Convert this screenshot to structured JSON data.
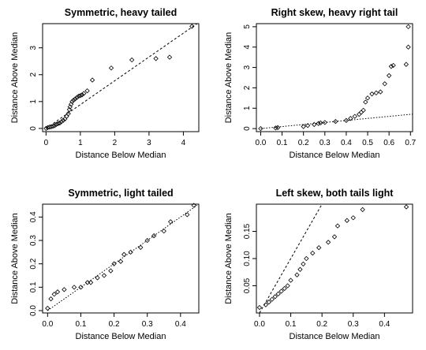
{
  "chart_data": [
    {
      "type": "scatter",
      "title": "Symmetric, heavy tailed",
      "xlabel": "Distance Below Median",
      "ylabel": "Distance Above Median",
      "xlim": [
        -0.1,
        4.45
      ],
      "ylim": [
        -0.12,
        3.9
      ],
      "xticks": [
        0,
        1,
        2,
        3,
        4
      ],
      "yticks": [
        0,
        1,
        2,
        3
      ],
      "reference_line": {
        "from": [
          0,
          0
        ],
        "to": [
          4.4,
          3.9
        ],
        "style": "dashed"
      },
      "points": [
        [
          0.0,
          0.0
        ],
        [
          0.05,
          0.03
        ],
        [
          0.1,
          0.05
        ],
        [
          0.15,
          0.06
        ],
        [
          0.2,
          0.08
        ],
        [
          0.25,
          0.1
        ],
        [
          0.3,
          0.15
        ],
        [
          0.35,
          0.18
        ],
        [
          0.4,
          0.2
        ],
        [
          0.45,
          0.25
        ],
        [
          0.5,
          0.3
        ],
        [
          0.55,
          0.35
        ],
        [
          0.6,
          0.45
        ],
        [
          0.65,
          0.55
        ],
        [
          0.68,
          0.7
        ],
        [
          0.7,
          0.8
        ],
        [
          0.73,
          0.9
        ],
        [
          0.76,
          1.0
        ],
        [
          0.8,
          1.05
        ],
        [
          0.85,
          1.1
        ],
        [
          0.9,
          1.15
        ],
        [
          0.95,
          1.2
        ],
        [
          1.0,
          1.22
        ],
        [
          1.05,
          1.25
        ],
        [
          1.1,
          1.3
        ],
        [
          1.2,
          1.4
        ],
        [
          1.35,
          1.8
        ],
        [
          1.9,
          2.25
        ],
        [
          2.5,
          2.55
        ],
        [
          3.2,
          2.6
        ],
        [
          3.6,
          2.65
        ],
        [
          4.25,
          3.8
        ]
      ]
    },
    {
      "type": "scatter",
      "title": "Right skew, heavy right tail",
      "xlabel": "Distance Below Median",
      "ylabel": "Distance Above Median",
      "xlim": [
        -0.02,
        0.71
      ],
      "ylim": [
        -0.15,
        5.15
      ],
      "xticks": [
        0.0,
        0.1,
        0.2,
        0.3,
        0.4,
        0.5,
        0.6,
        0.7
      ],
      "yticks": [
        0,
        1,
        2,
        3,
        4,
        5
      ],
      "reference_line": {
        "from": [
          0,
          0
        ],
        "to": [
          0.71,
          0.71
        ],
        "style": "dotted"
      },
      "points": [
        [
          0.0,
          0.0
        ],
        [
          0.07,
          0.03
        ],
        [
          0.08,
          0.05
        ],
        [
          0.2,
          0.1
        ],
        [
          0.22,
          0.15
        ],
        [
          0.25,
          0.2
        ],
        [
          0.27,
          0.25
        ],
        [
          0.28,
          0.28
        ],
        [
          0.3,
          0.3
        ],
        [
          0.35,
          0.35
        ],
        [
          0.4,
          0.4
        ],
        [
          0.42,
          0.5
        ],
        [
          0.44,
          0.6
        ],
        [
          0.46,
          0.7
        ],
        [
          0.47,
          0.8
        ],
        [
          0.48,
          0.9
        ],
        [
          0.49,
          1.3
        ],
        [
          0.5,
          1.5
        ],
        [
          0.52,
          1.7
        ],
        [
          0.54,
          1.75
        ],
        [
          0.56,
          1.8
        ],
        [
          0.58,
          2.2
        ],
        [
          0.6,
          2.6
        ],
        [
          0.61,
          3.05
        ],
        [
          0.62,
          3.1
        ],
        [
          0.68,
          3.15
        ],
        [
          0.69,
          4.0
        ],
        [
          0.69,
          5.0
        ]
      ]
    },
    {
      "type": "scatter",
      "title": "Symmetric, light tailed",
      "xlabel": "Distance Below Median",
      "ylabel": "Distance Above Median",
      "xlim": [
        -0.015,
        0.455
      ],
      "ylim": [
        -0.01,
        0.455
      ],
      "xticks": [
        0.0,
        0.1,
        0.2,
        0.3,
        0.4
      ],
      "yticks": [
        0.0,
        0.1,
        0.2,
        0.3,
        0.4
      ],
      "reference_line": {
        "from": [
          0,
          0
        ],
        "to": [
          0.45,
          0.45
        ],
        "style": "dotted"
      },
      "points": [
        [
          0.0,
          0.01
        ],
        [
          0.01,
          0.05
        ],
        [
          0.02,
          0.07
        ],
        [
          0.03,
          0.08
        ],
        [
          0.05,
          0.09
        ],
        [
          0.08,
          0.1
        ],
        [
          0.1,
          0.1
        ],
        [
          0.12,
          0.12
        ],
        [
          0.13,
          0.12
        ],
        [
          0.15,
          0.14
        ],
        [
          0.17,
          0.15
        ],
        [
          0.19,
          0.17
        ],
        [
          0.2,
          0.2
        ],
        [
          0.22,
          0.21
        ],
        [
          0.23,
          0.24
        ],
        [
          0.25,
          0.25
        ],
        [
          0.28,
          0.27
        ],
        [
          0.3,
          0.3
        ],
        [
          0.32,
          0.32
        ],
        [
          0.35,
          0.34
        ],
        [
          0.37,
          0.38
        ],
        [
          0.42,
          0.41
        ],
        [
          0.44,
          0.45
        ]
      ]
    },
    {
      "type": "scatter",
      "title": "Left skew, both tails light",
      "xlabel": "Distance Below Median",
      "ylabel": "Distance Above Median",
      "xlim": [
        -0.01,
        0.49
      ],
      "ylim": [
        0.0,
        0.2
      ],
      "xticks": [
        0.0,
        0.1,
        0.2,
        0.3,
        0.4
      ],
      "yticks": [
        0.05,
        0.1,
        0.15
      ],
      "reference_line": {
        "from": [
          0,
          0
        ],
        "to": [
          0.2,
          0.2
        ],
        "style": "dashed"
      },
      "points": [
        [
          0.0,
          0.01
        ],
        [
          0.02,
          0.015
        ],
        [
          0.03,
          0.02
        ],
        [
          0.04,
          0.025
        ],
        [
          0.05,
          0.03
        ],
        [
          0.06,
          0.035
        ],
        [
          0.07,
          0.04
        ],
        [
          0.08,
          0.045
        ],
        [
          0.09,
          0.05
        ],
        [
          0.1,
          0.06
        ],
        [
          0.12,
          0.07
        ],
        [
          0.13,
          0.08
        ],
        [
          0.14,
          0.09
        ],
        [
          0.15,
          0.1
        ],
        [
          0.17,
          0.11
        ],
        [
          0.19,
          0.12
        ],
        [
          0.22,
          0.13
        ],
        [
          0.24,
          0.14
        ],
        [
          0.25,
          0.16
        ],
        [
          0.28,
          0.17
        ],
        [
          0.3,
          0.175
        ],
        [
          0.33,
          0.19
        ],
        [
          0.47,
          0.195
        ]
      ]
    }
  ]
}
